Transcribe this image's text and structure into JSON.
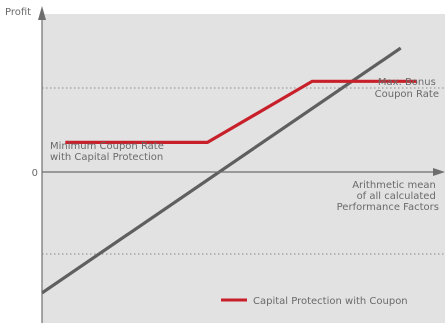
{
  "chart_data": {
    "type": "line",
    "title": "",
    "ylabel": "Profit",
    "xlabel": [
      "Arithmetic mean",
      "of all calculated",
      "Performance Factors"
    ],
    "zero_label": "0",
    "grid": false,
    "reference_lines": [
      {
        "name": "max",
        "style": "dotted"
      },
      {
        "name": "min",
        "style": "dotted"
      }
    ],
    "series": [
      {
        "name": "",
        "color": "#5f5f5f",
        "x": [
          -4.1,
          3.6
        ],
        "y": [
          -1.47,
          1.62
        ]
      },
      {
        "name": "Capital Protection with Coupon",
        "color": "#c8202a",
        "x": [
          -3.6,
          -0.55,
          1.7,
          3.95
        ],
        "y": [
          0.43,
          0.43,
          1.2,
          1.2
        ]
      }
    ],
    "annotations": [
      {
        "name": "max",
        "lines": [
          "Max. Bonus",
          "Coupon Rate"
        ]
      },
      {
        "name": "min",
        "lines": [
          "Minimum Coupon Rate",
          "with Capital Protection"
        ]
      }
    ],
    "legend": {
      "label": "Capital Protection with Coupon",
      "placement": "bottom-right"
    },
    "xlim": [
      -4.1,
      4.55
    ],
    "ylim": [
      -1.85,
      2.05
    ],
    "colors": {
      "background": "#e2e2e2",
      "axis": "#6e6e6e",
      "text": "#6a6a6a",
      "dotted": "#8c8c8c"
    }
  }
}
